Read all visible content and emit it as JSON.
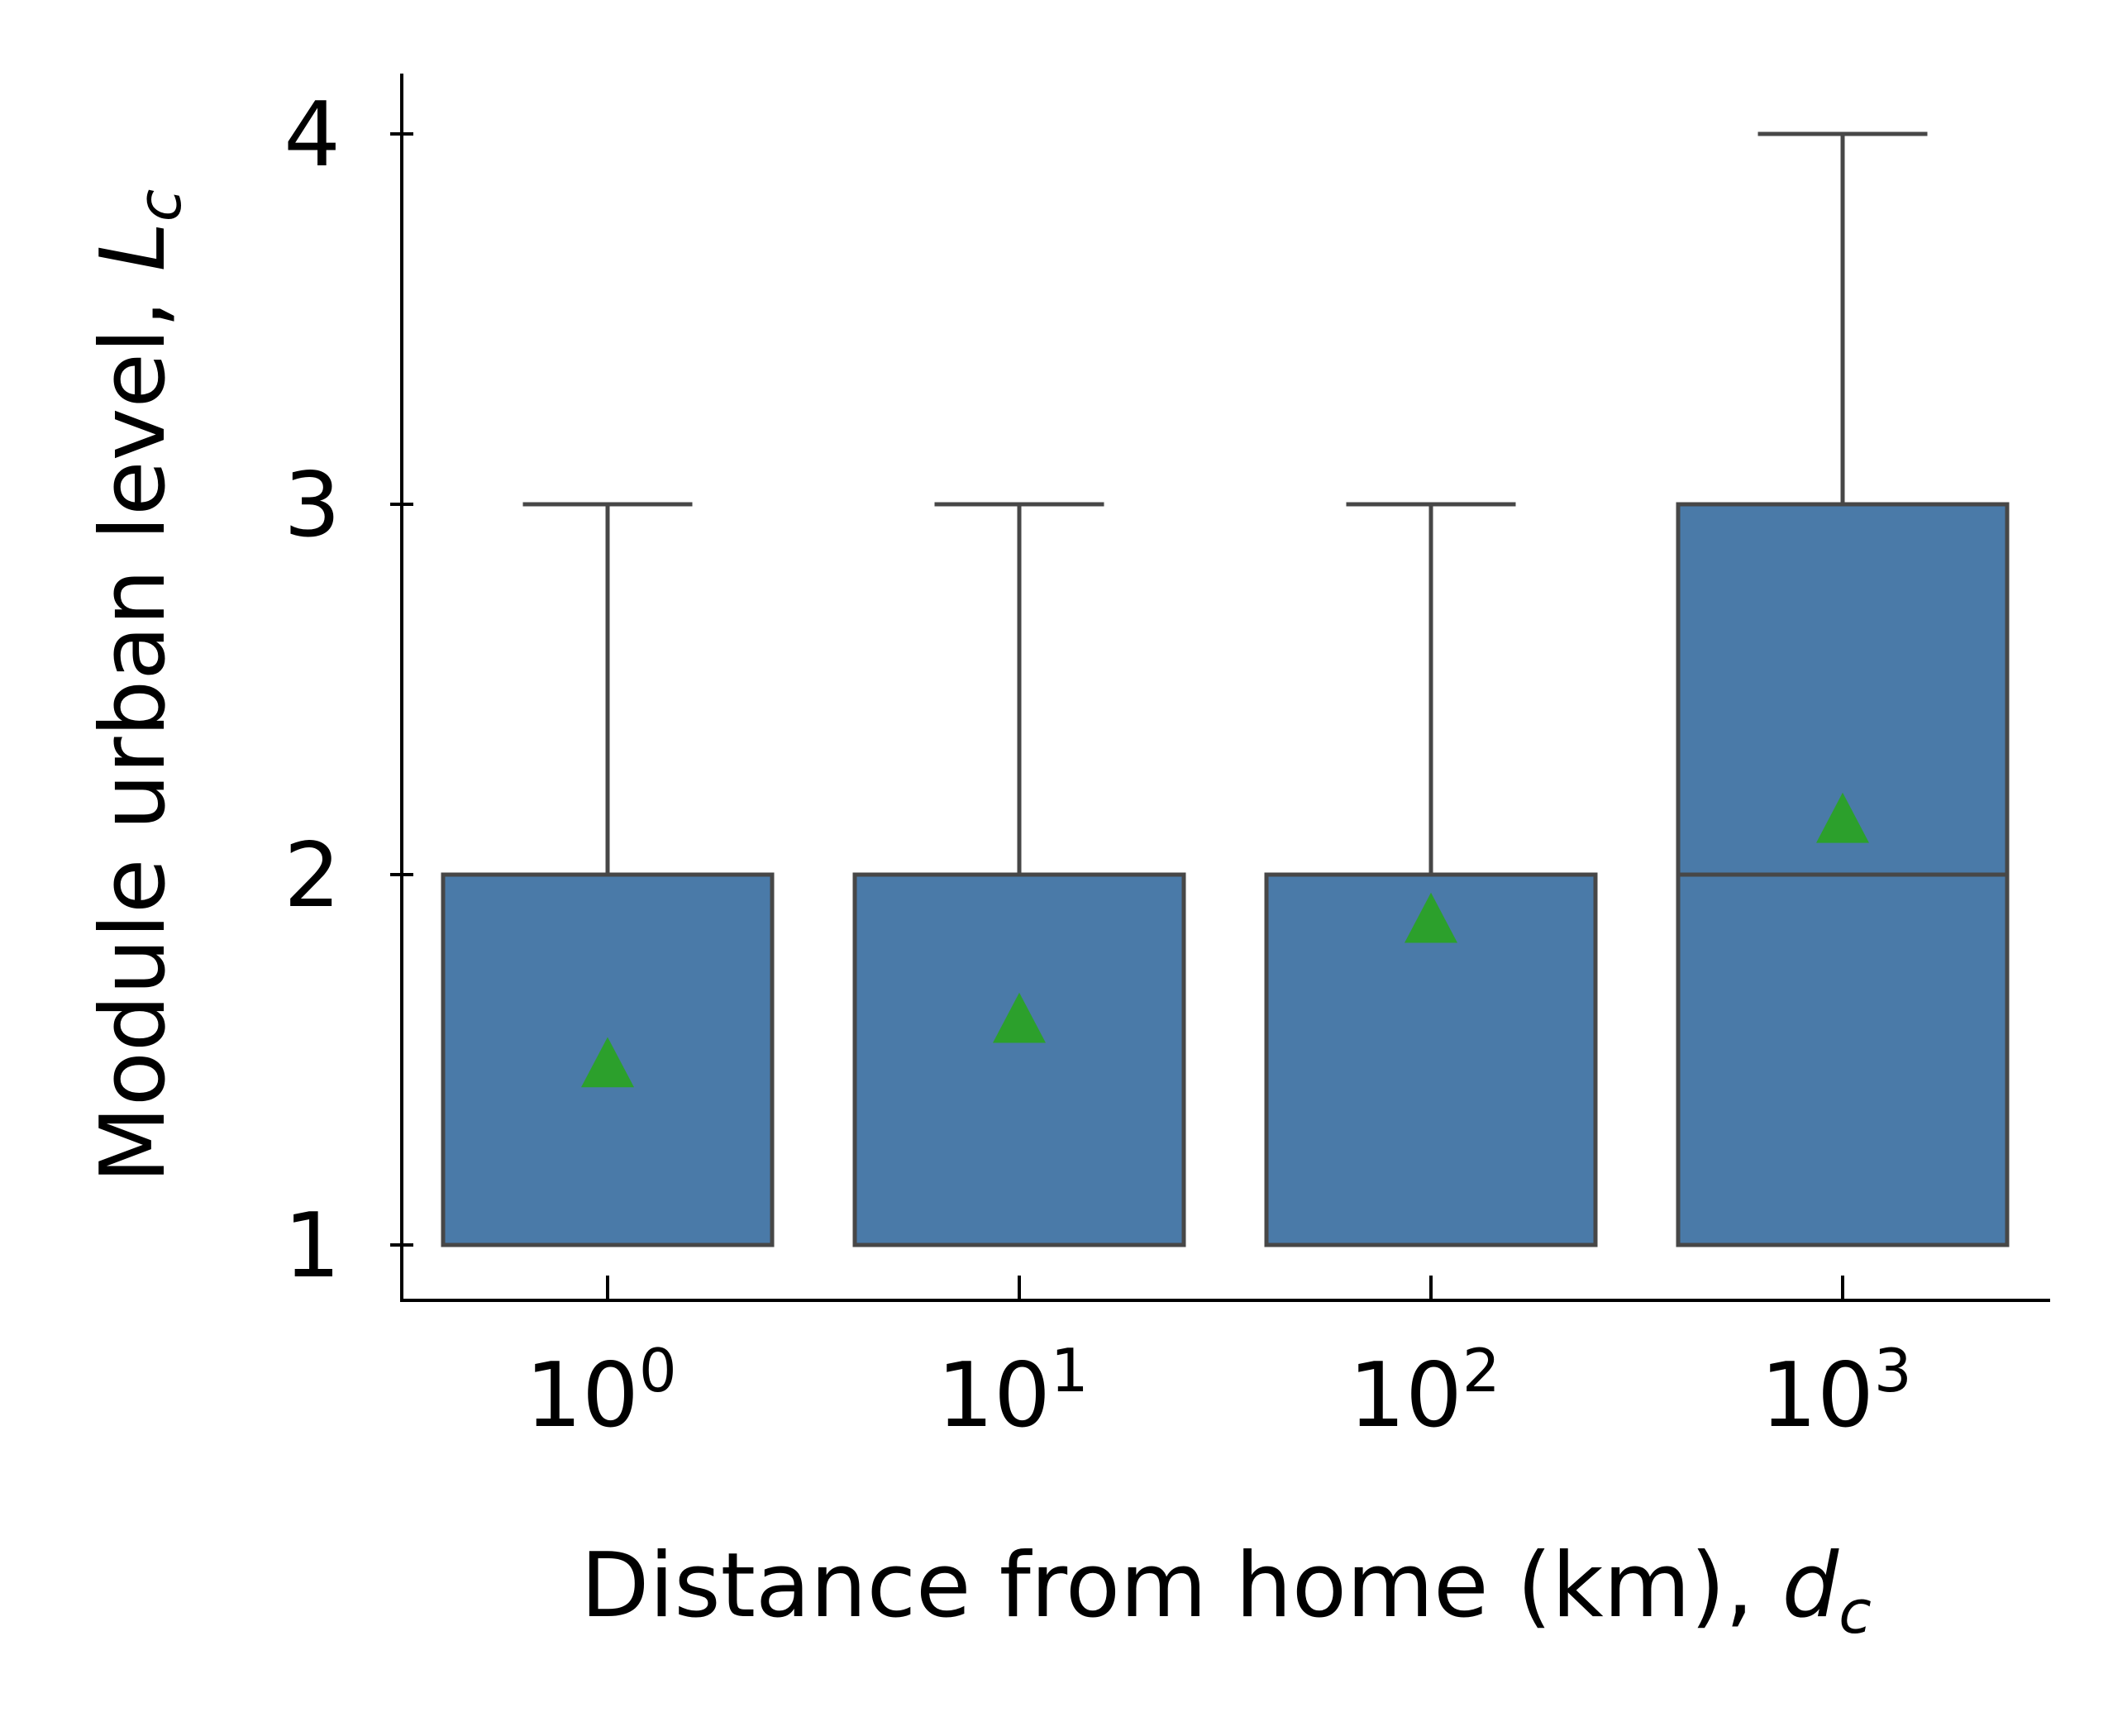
{
  "chart_data": {
    "type": "box",
    "xlabel": "Distance from home (km), ",
    "xlabel_symbol": "d",
    "xlabel_subscript": "c",
    "ylabel": "Module urban level, ",
    "ylabel_symbol": "L",
    "ylabel_subscript": "c",
    "categories": [
      {
        "base": "10",
        "exp": "0"
      },
      {
        "base": "10",
        "exp": "1"
      },
      {
        "base": "10",
        "exp": "2"
      },
      {
        "base": "10",
        "exp": "3"
      }
    ],
    "y_ticks": [
      "1",
      "2",
      "3",
      "4"
    ],
    "ylim": [
      0.85,
      4.15
    ],
    "boxes": [
      {
        "whisker_low": 1,
        "q1": 1,
        "median": 1,
        "q3": 2,
        "whisker_high": 3,
        "mean": 1.49
      },
      {
        "whisker_low": 1,
        "q1": 1,
        "median": 1,
        "q3": 2,
        "whisker_high": 3,
        "mean": 1.61
      },
      {
        "whisker_low": 1,
        "q1": 1,
        "median": 2,
        "q3": 2,
        "whisker_high": 3,
        "mean": 1.88
      },
      {
        "whisker_low": 1,
        "q1": 1,
        "median": 2,
        "q3": 3,
        "whisker_high": 4,
        "mean": 2.15
      }
    ],
    "colors": {
      "box_fill": "#4a7aa8",
      "box_edge": "#474747",
      "mean_marker": "#2ca02c",
      "axis": "#000000"
    },
    "grid": false,
    "legend": "none"
  }
}
